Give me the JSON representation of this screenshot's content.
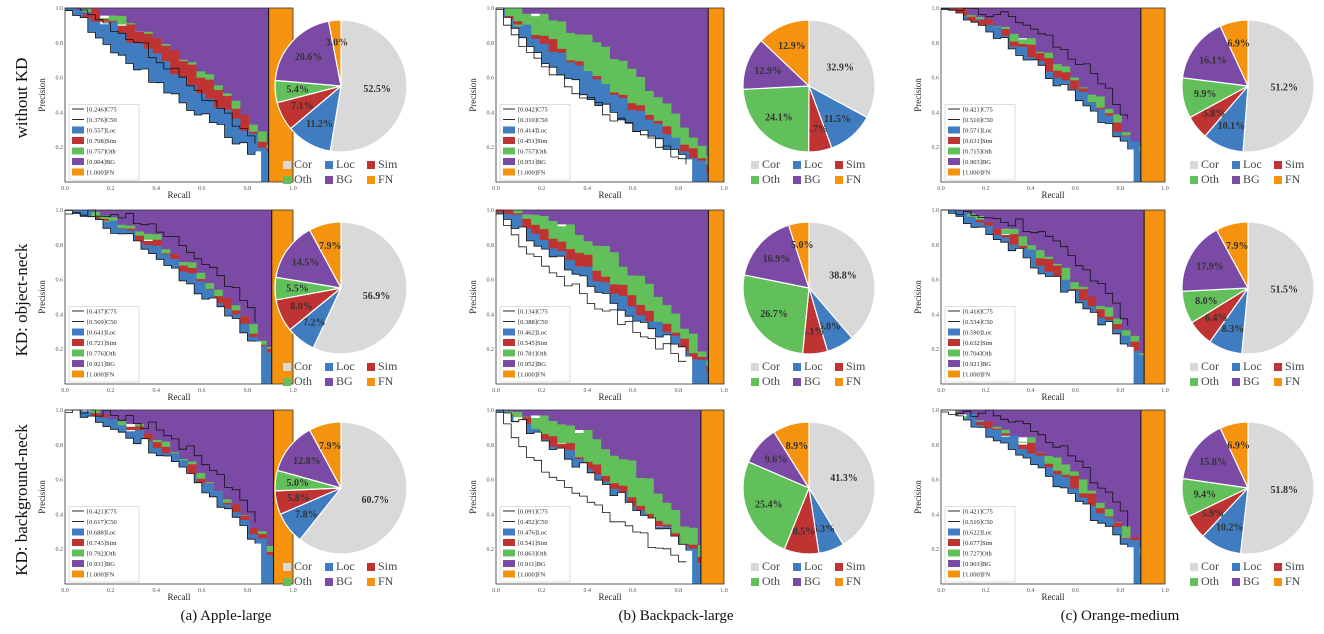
{
  "row_labels": [
    "without KD",
    "KD: object-neck",
    "KD: background-neck"
  ],
  "column_labels": [
    "(a) Apple-large",
    "(b) Backpack-large",
    "(c) Orange-medium"
  ],
  "pie_legend": [
    {
      "key": "Cor",
      "label": "Cor",
      "color": "#d9d9d9"
    },
    {
      "key": "Loc",
      "label": "Loc",
      "color": "#3f7cc0"
    },
    {
      "key": "Sim",
      "label": "Sim",
      "color": "#c03333"
    },
    {
      "key": "Oth",
      "label": "Oth",
      "color": "#62c05a"
    },
    {
      "key": "BG",
      "label": "BG",
      "color": "#7a4aa5"
    },
    {
      "key": "FN",
      "label": "FN",
      "color": "#f5930e"
    }
  ],
  "chart_data": [
    {
      "type": "area",
      "panel": "Apple-large / without KD",
      "xlabel": "Recall",
      "ylabel": "Precision",
      "xlim": [
        0,
        1
      ],
      "ylim": [
        0,
        1
      ],
      "xticks": [
        0.0,
        0.2,
        0.4,
        0.6,
        0.8,
        1.0
      ],
      "yticks": [
        0.2,
        0.4,
        0.6,
        0.8,
        1.0
      ],
      "legend": [
        "[0.246]C75",
        "[0.376]C50",
        "[0.557]Loc",
        "[0.708]Sim",
        "[0.757]Oth",
        "[0.904]BG",
        "[1.000]FN"
      ],
      "legend_rows": 7,
      "auc": {
        "C75": 0.246,
        "C50": 0.376,
        "Loc": 0.557,
        "Sim": 0.708,
        "Oth": 0.757,
        "BG": 0.904,
        "FN": 1.0
      }
    },
    {
      "type": "pie",
      "panel": "Apple-large / without KD",
      "slices": [
        {
          "label": "Cor",
          "value": 52.5
        },
        {
          "label": "Loc",
          "value": 11.2
        },
        {
          "label": "Sim",
          "value": 7.1
        },
        {
          "label": "Oth",
          "value": 5.4
        },
        {
          "label": "BG",
          "value": 20.6
        },
        {
          "label": "FN",
          "value": 3.0
        }
      ]
    },
    {
      "type": "area",
      "panel": "Backpack-large / without KD",
      "xlabel": "Recall",
      "ylabel": "Precision",
      "xlim": [
        0,
        1
      ],
      "ylim": [
        0,
        1
      ],
      "xticks": [
        0.0,
        0.2,
        0.4,
        0.6,
        0.8,
        1.0
      ],
      "yticks": [
        0.2,
        0.4,
        0.6,
        0.8,
        1.0
      ],
      "legend": [
        "[0.042]C75",
        "[0.310]C50",
        "[0.414]Loc",
        "[0.451]Sim",
        "[0.757]Oth",
        "[0.951]BG",
        "[1.000]FN"
      ],
      "legend_rows": 7,
      "auc": {
        "C75": 0.042,
        "C50": 0.31,
        "Loc": 0.414,
        "Sim": 0.451,
        "Oth": 0.757,
        "BG": 0.951,
        "FN": 1.0
      }
    },
    {
      "type": "pie",
      "panel": "Backpack-large / without KD",
      "slices": [
        {
          "label": "Cor",
          "value": 32.9
        },
        {
          "label": "Loc",
          "value": 11.5
        },
        {
          "label": "Sim",
          "value": 5.7
        },
        {
          "label": "Oth",
          "value": 24.1
        },
        {
          "label": "BG",
          "value": 12.9
        },
        {
          "label": "FN",
          "value": 12.9
        }
      ]
    },
    {
      "type": "area",
      "panel": "Orange-medium / without KD",
      "xlabel": "Recall",
      "ylabel": "Precision",
      "xlim": [
        0,
        1
      ],
      "ylim": [
        0,
        1
      ],
      "xticks": [
        0.0,
        0.2,
        0.4,
        0.6,
        0.8,
        1.0
      ],
      "yticks": [
        0.2,
        0.4,
        0.6,
        0.8,
        1.0
      ],
      "legend": [
        "[0.421]C75",
        "[0.510]C50",
        "[0.571]Loc",
        "[0.631]Sim",
        "[0.715]Oth",
        "[0.903]BG",
        "[1.000]FN"
      ],
      "legend_rows": 7,
      "auc": {
        "C75": 0.421,
        "C50": 0.51,
        "Loc": 0.571,
        "Sim": 0.631,
        "Oth": 0.715,
        "BG": 0.903,
        "FN": 1.0
      }
    },
    {
      "type": "pie",
      "panel": "Orange-medium / without KD",
      "slices": [
        {
          "label": "Cor",
          "value": 51.2
        },
        {
          "label": "Loc",
          "value": 10.1
        },
        {
          "label": "Sim",
          "value": 5.8
        },
        {
          "label": "Oth",
          "value": 9.9
        },
        {
          "label": "BG",
          "value": 16.1
        },
        {
          "label": "FN",
          "value": 6.9
        }
      ]
    },
    {
      "type": "area",
      "panel": "Apple-large / KD: object-neck",
      "xlabel": "Recall",
      "ylabel": "Precision",
      "xlim": [
        0,
        1
      ],
      "ylim": [
        0,
        1
      ],
      "xticks": [
        0.0,
        0.2,
        0.4,
        0.6,
        0.8,
        1.0
      ],
      "yticks": [
        0.2,
        0.4,
        0.6,
        0.8,
        1.0
      ],
      "legend": [
        "[0.437]C75",
        "[0.569]C50",
        "[0.641]Loc",
        "[0.721]Sim",
        "[0.776]Oth",
        "[0.921]BG",
        "[1.000]FN"
      ],
      "legend_rows": 7,
      "auc": {
        "C75": 0.437,
        "C50": 0.569,
        "Loc": 0.641,
        "Sim": 0.721,
        "Oth": 0.776,
        "BG": 0.921,
        "FN": 1.0
      }
    },
    {
      "type": "pie",
      "panel": "Apple-large / KD: object-neck",
      "slices": [
        {
          "label": "Cor",
          "value": 56.9
        },
        {
          "label": "Loc",
          "value": 7.2
        },
        {
          "label": "Sim",
          "value": 8.0
        },
        {
          "label": "Oth",
          "value": 5.5
        },
        {
          "label": "BG",
          "value": 14.5
        },
        {
          "label": "FN",
          "value": 7.9
        }
      ]
    },
    {
      "type": "area",
      "panel": "Backpack-large / KD: object-neck",
      "xlabel": "Recall",
      "ylabel": "Precision",
      "xlim": [
        0,
        1
      ],
      "ylim": [
        0,
        1
      ],
      "xticks": [
        0.0,
        0.2,
        0.4,
        0.6,
        0.8,
        1.0
      ],
      "yticks": [
        0.2,
        0.4,
        0.6,
        0.8,
        1.0
      ],
      "legend": [
        "[0.134]C75",
        "[0.388]C50",
        "[0.462]Loc",
        "[0.545]Sim",
        "[0.781]Oth",
        "[0.952]BG",
        "[1.000]FN"
      ],
      "legend_rows": 7,
      "auc": {
        "C75": 0.134,
        "C50": 0.388,
        "Loc": 0.462,
        "Sim": 0.545,
        "Oth": 0.781,
        "BG": 0.952,
        "FN": 1.0
      }
    },
    {
      "type": "pie",
      "panel": "Backpack-large / KD: object-neck",
      "slices": [
        {
          "label": "Cor",
          "value": 38.8
        },
        {
          "label": "Loc",
          "value": 6.8
        },
        {
          "label": "Sim",
          "value": 6.1
        },
        {
          "label": "Oth",
          "value": 26.7
        },
        {
          "label": "BG",
          "value": 16.9
        },
        {
          "label": "FN",
          "value": 5.0
        }
      ]
    },
    {
      "type": "area",
      "panel": "Orange-medium / KD: object-neck",
      "xlabel": "Recall",
      "ylabel": "Precision",
      "xlim": [
        0,
        1
      ],
      "ylim": [
        0,
        1
      ],
      "xticks": [
        0.0,
        0.2,
        0.4,
        0.6,
        0.8,
        1.0
      ],
      "yticks": [
        0.2,
        0.4,
        0.6,
        0.8,
        1.0
      ],
      "legend": [
        "[0.418]C75",
        "[0.534]C50",
        "[0.590]Loc",
        "[0.632]Sim",
        "[0.704]Oth",
        "[0.921]BG",
        "[1.000]FN"
      ],
      "legend_rows": 7,
      "auc": {
        "C75": 0.418,
        "C50": 0.534,
        "Loc": 0.59,
        "Sim": 0.632,
        "Oth": 0.704,
        "BG": 0.921,
        "FN": 1.0
      }
    },
    {
      "type": "pie",
      "panel": "Orange-medium / KD: object-neck",
      "slices": [
        {
          "label": "Cor",
          "value": 51.5
        },
        {
          "label": "Loc",
          "value": 8.3
        },
        {
          "label": "Sim",
          "value": 6.4
        },
        {
          "label": "Oth",
          "value": 8.0
        },
        {
          "label": "BG",
          "value": 17.9
        },
        {
          "label": "FN",
          "value": 7.9
        }
      ]
    },
    {
      "type": "area",
      "panel": "Apple-large / KD: background-neck",
      "xlabel": "Recall",
      "ylabel": "Precision",
      "xlim": [
        0,
        1
      ],
      "ylim": [
        0,
        1
      ],
      "xticks": [
        0.0,
        0.2,
        0.4,
        0.6,
        0.8,
        1.0
      ],
      "yticks": [
        0.2,
        0.4,
        0.6,
        0.8,
        1.0
      ],
      "legend": [
        "[0.421]C75",
        "[0.617]C50",
        "[0.688]Loc",
        "[0.743]Sim",
        "[0.792]Oth",
        "[0.931]BG",
        "[1.000]FN"
      ],
      "legend_rows": 7,
      "auc": {
        "C75": 0.421,
        "C50": 0.617,
        "Loc": 0.688,
        "Sim": 0.743,
        "Oth": 0.792,
        "BG": 0.931,
        "FN": 1.0
      }
    },
    {
      "type": "pie",
      "panel": "Apple-large / KD: background-neck",
      "slices": [
        {
          "label": "Cor",
          "value": 60.7
        },
        {
          "label": "Loc",
          "value": 7.8
        },
        {
          "label": "Sim",
          "value": 5.8
        },
        {
          "label": "Oth",
          "value": 5.0
        },
        {
          "label": "BG",
          "value": 12.8
        },
        {
          "label": "FN",
          "value": 7.9
        }
      ]
    },
    {
      "type": "area",
      "panel": "Backpack-large / KD: background-neck",
      "xlabel": "Recall",
      "ylabel": "Precision",
      "xlim": [
        0,
        1
      ],
      "ylim": [
        0,
        1
      ],
      "xticks": [
        0.0,
        0.2,
        0.4,
        0.6,
        0.8,
        1.0
      ],
      "yticks": [
        0.2,
        0.4,
        0.6,
        0.8,
        1.0
      ],
      "legend": [
        "[0.091]C75",
        "[0.452]C50",
        "[0.476]Loc",
        "[0.541]Sim",
        "[0.863]Oth",
        "[0.911]BG",
        "[1.000]FN"
      ],
      "legend_rows": 7,
      "auc": {
        "C75": 0.091,
        "C50": 0.452,
        "Loc": 0.476,
        "Sim": 0.541,
        "Oth": 0.863,
        "BG": 0.911,
        "FN": 1.0
      }
    },
    {
      "type": "pie",
      "panel": "Backpack-large / KD: background-neck",
      "slices": [
        {
          "label": "Cor",
          "value": 41.3
        },
        {
          "label": "Loc",
          "value": 6.3
        },
        {
          "label": "Sim",
          "value": 8.5
        },
        {
          "label": "Oth",
          "value": 25.4
        },
        {
          "label": "BG",
          "value": 9.6
        },
        {
          "label": "FN",
          "value": 8.9
        }
      ]
    },
    {
      "type": "area",
      "panel": "Orange-medium / KD: background-neck",
      "xlabel": "Recall",
      "ylabel": "Precision",
      "xlim": [
        0,
        1
      ],
      "ylim": [
        0,
        1
      ],
      "xticks": [
        0.0,
        0.2,
        0.4,
        0.6,
        0.8,
        1.0
      ],
      "yticks": [
        0.2,
        0.4,
        0.6,
        0.8,
        1.0
      ],
      "legend": [
        "[0.421]C75",
        "[0.510]C50",
        "[0.622]Loc",
        "[0.677]Sim",
        "[0.727]Oth",
        "[0.903]BG",
        "[1.000]FN"
      ],
      "legend_rows": 7,
      "auc": {
        "C75": 0.421,
        "C50": 0.51,
        "Loc": 0.622,
        "Sim": 0.677,
        "Oth": 0.727,
        "BG": 0.903,
        "FN": 1.0
      }
    },
    {
      "type": "pie",
      "panel": "Orange-medium / KD: background-neck",
      "slices": [
        {
          "label": "Cor",
          "value": 51.8
        },
        {
          "label": "Loc",
          "value": 10.2
        },
        {
          "label": "Sim",
          "value": 5.9
        },
        {
          "label": "Oth",
          "value": 9.4
        },
        {
          "label": "BG",
          "value": 15.8
        },
        {
          "label": "FN",
          "value": 6.9
        }
      ]
    }
  ]
}
